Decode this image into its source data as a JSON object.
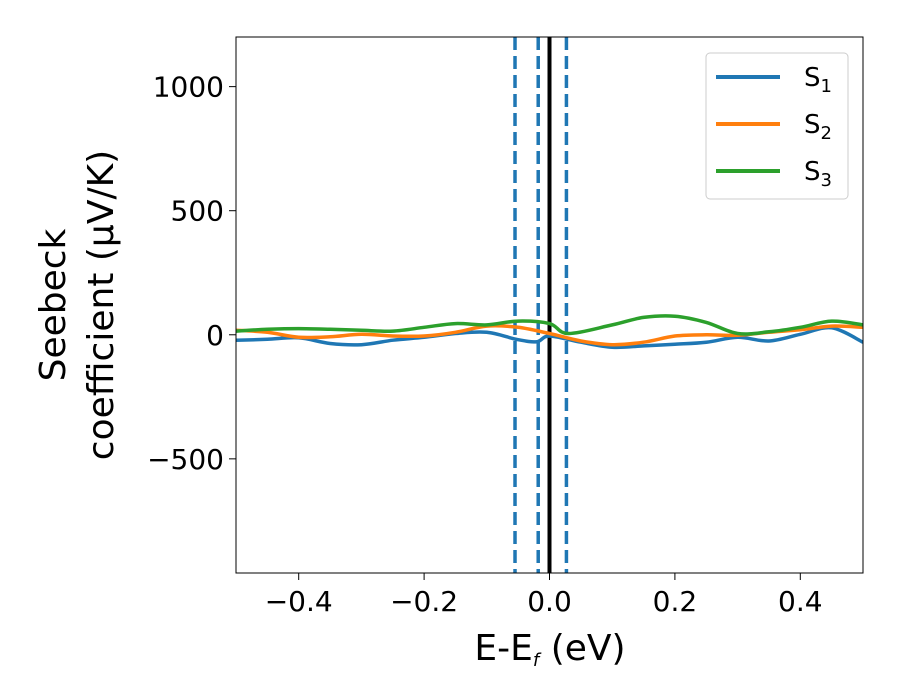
{
  "chart_data": {
    "type": "line",
    "title": "",
    "xlabel": {
      "main": "E-E",
      "sub": "f",
      "unit": " (eV)"
    },
    "ylabel": {
      "line1": "Seebeck",
      "line2": "coefficient  (μV/K)"
    },
    "xlim": [
      -0.5,
      0.5
    ],
    "ylim": [
      -960,
      1200
    ],
    "xticks": [
      -0.4,
      -0.2,
      0.0,
      0.2,
      0.4
    ],
    "xtick_labels": [
      "−0.4",
      "−0.2",
      "0.0",
      "0.2",
      "0.4"
    ],
    "yticks": [
      -500,
      0,
      500,
      1000
    ],
    "ytick_labels": [
      "−500",
      "0",
      "500",
      "1000"
    ],
    "grid": false,
    "legend_position": "top-right",
    "series": [
      {
        "name": "S1",
        "label_main": "S",
        "label_sub": "1",
        "color": "#1f77b4",
        "x": [
          -0.5,
          -0.45,
          -0.4,
          -0.35,
          -0.3,
          -0.25,
          -0.2,
          -0.15,
          -0.1,
          -0.05,
          -0.02,
          0.0,
          0.05,
          0.1,
          0.15,
          0.2,
          0.25,
          0.3,
          0.35,
          0.4,
          0.45,
          0.5
        ],
        "y": [
          -22,
          -18,
          -12,
          -35,
          -40,
          -22,
          -10,
          5,
          10,
          -20,
          -28,
          -5,
          -30,
          -50,
          -45,
          -38,
          -30,
          -10,
          -25,
          2,
          28,
          -30
        ]
      },
      {
        "name": "S2",
        "label_main": "S",
        "label_sub": "2",
        "color": "#ff7f0e",
        "x": [
          -0.5,
          -0.45,
          -0.4,
          -0.35,
          -0.3,
          -0.25,
          -0.2,
          -0.15,
          -0.1,
          -0.05,
          0.0,
          0.05,
          0.1,
          0.15,
          0.2,
          0.25,
          0.3,
          0.35,
          0.4,
          0.45,
          0.5
        ],
        "y": [
          18,
          10,
          -10,
          -8,
          2,
          -5,
          -5,
          10,
          35,
          30,
          5,
          -25,
          -40,
          -30,
          -5,
          0,
          -2,
          10,
          20,
          35,
          30
        ]
      },
      {
        "name": "S3",
        "label_main": "S",
        "label_sub": "3",
        "color": "#2ca02c",
        "x": [
          -0.5,
          -0.45,
          -0.4,
          -0.35,
          -0.3,
          -0.25,
          -0.2,
          -0.15,
          -0.1,
          -0.05,
          0.0,
          0.03,
          0.1,
          0.15,
          0.2,
          0.25,
          0.3,
          0.35,
          0.4,
          0.45,
          0.5
        ],
        "y": [
          15,
          22,
          25,
          22,
          18,
          15,
          30,
          45,
          40,
          55,
          45,
          5,
          40,
          70,
          75,
          50,
          5,
          12,
          30,
          55,
          40
        ]
      }
    ],
    "vlines": [
      {
        "x": -0.055,
        "style": "dashed",
        "color": "#1f77b4"
      },
      {
        "x": -0.018,
        "style": "dashed",
        "color": "#1f77b4"
      },
      {
        "x": 0.0,
        "style": "solid",
        "color": "#000000"
      },
      {
        "x": 0.027,
        "style": "dashed",
        "color": "#1f77b4"
      }
    ]
  }
}
